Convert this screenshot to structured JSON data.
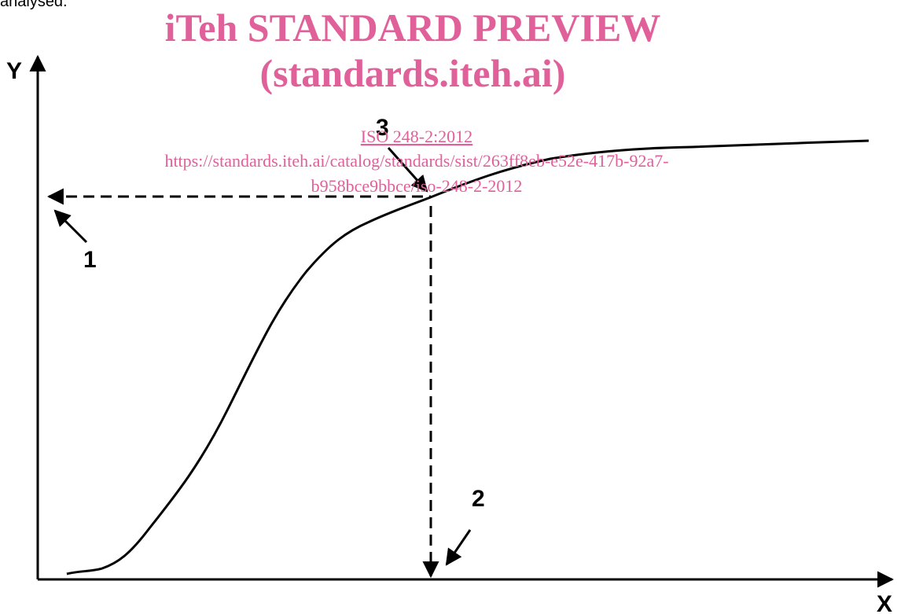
{
  "header": {
    "fragment": "analysed."
  },
  "watermark": {
    "title": "iTeh STANDARD PREVIEW",
    "site": "(standards.iteh.ai)",
    "standard": "ISO 248-2:2012",
    "url_line1": "https://standards.iteh.ai/catalog/standards/sist/263ff8eb-e52e-417b-92a7-",
    "url_line2": "b958bce9bbce/iso-248-2-2012"
  },
  "diagram": {
    "y_axis_label": "Y",
    "x_axis_label": "X",
    "callouts": [
      "1",
      "2",
      "3"
    ]
  }
}
